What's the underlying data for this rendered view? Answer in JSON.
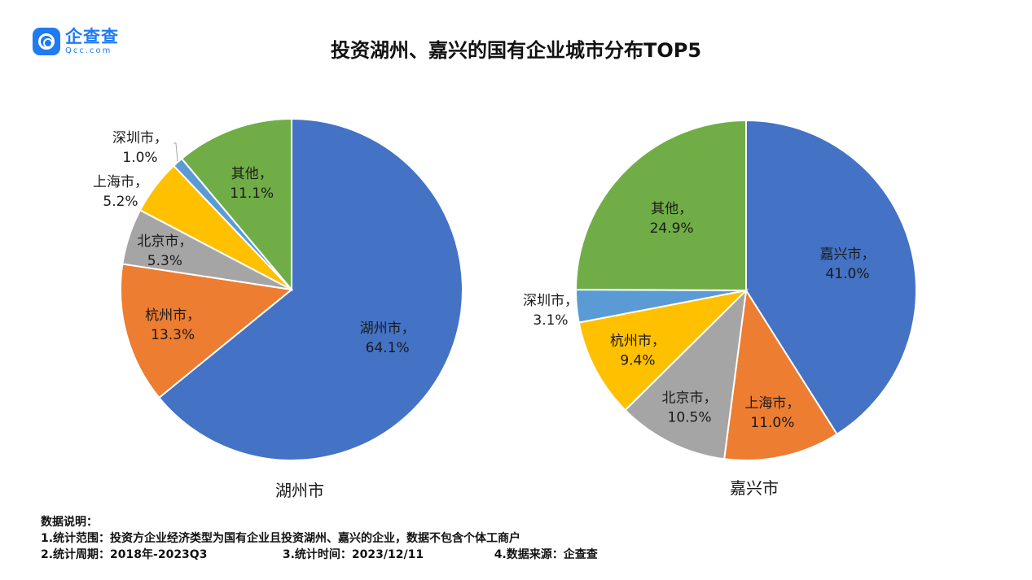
{
  "logo": {
    "name": "企查查",
    "sub": "Qcc.com"
  },
  "title": "投资湖州、嘉兴的国有企业城市分布TOP5",
  "chart_data": [
    {
      "type": "pie",
      "title": "湖州市",
      "slices": [
        {
          "label": "湖州市",
          "value": 64.1,
          "display": "64.1%",
          "color": "#4472c4"
        },
        {
          "label": "杭州市",
          "value": 13.3,
          "display": "13.3%",
          "color": "#ed7d31"
        },
        {
          "label": "北京市",
          "value": 5.3,
          "display": "5.3%",
          "color": "#a5a5a5"
        },
        {
          "label": "上海市",
          "value": 5.2,
          "display": "5.2%",
          "color": "#ffc000"
        },
        {
          "label": "深圳市",
          "value": 1.0,
          "display": "1.0%",
          "color": "#5b9bd5"
        },
        {
          "label": "其他",
          "value": 11.1,
          "display": "11.1%",
          "color": "#70ad47"
        }
      ]
    },
    {
      "type": "pie",
      "title": "嘉兴市",
      "slices": [
        {
          "label": "嘉兴市",
          "value": 41.0,
          "display": "41.0%",
          "color": "#4472c4"
        },
        {
          "label": "上海市",
          "value": 11.0,
          "display": "11.0%",
          "color": "#ed7d31"
        },
        {
          "label": "北京市",
          "value": 10.5,
          "display": "10.5%",
          "color": "#a5a5a5"
        },
        {
          "label": "杭州市",
          "value": 9.4,
          "display": "9.4%",
          "color": "#ffc000"
        },
        {
          "label": "深圳市",
          "value": 3.1,
          "display": "3.1%",
          "color": "#5b9bd5"
        },
        {
          "label": "其他",
          "value": 24.9,
          "display": "24.9%",
          "color": "#70ad47"
        }
      ]
    }
  ],
  "notes": {
    "heading": "数据说明：",
    "line1": "1.统计范围：投资方企业经济类型为国有企业且投资湖州、嘉兴的企业，数据不包含个体工商户",
    "line2_a": "2.统计周期：2018年-2023Q3",
    "line2_b": "3.统计时间：2023/12/11",
    "line2_c": "4.数据来源：企查查"
  }
}
